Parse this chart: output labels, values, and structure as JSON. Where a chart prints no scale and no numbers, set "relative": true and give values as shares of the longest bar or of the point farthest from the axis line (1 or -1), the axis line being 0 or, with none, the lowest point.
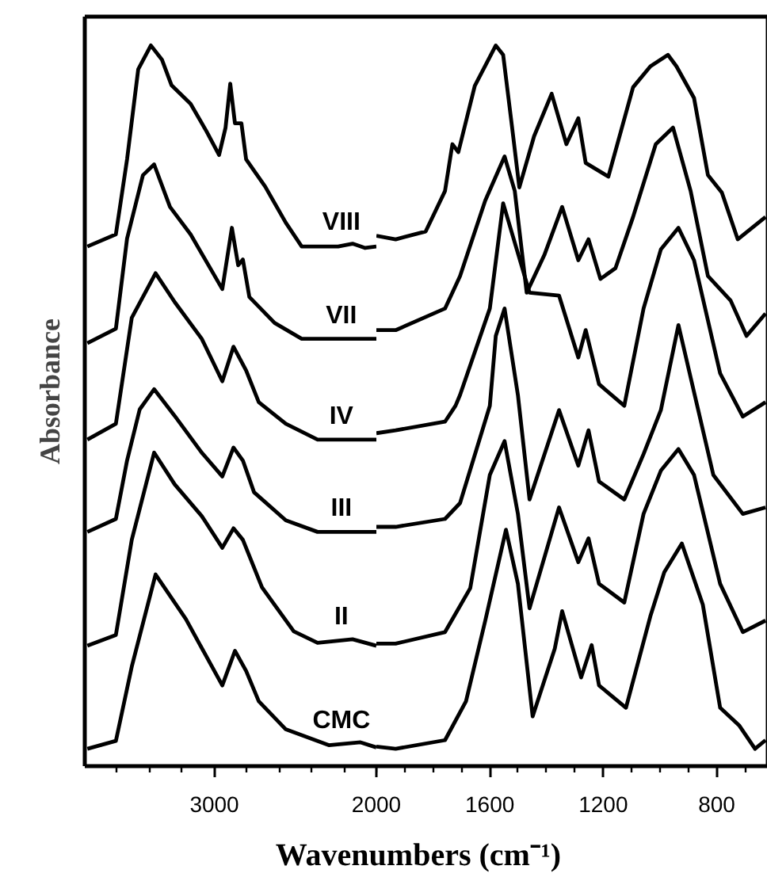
{
  "chart_data": [
    {
      "type": "line",
      "relative": true,
      "ylabel": "Absorbance",
      "xlim": [
        3800,
        2000
      ],
      "xticks": [
        {
          "value": 3600,
          "label": null
        },
        {
          "value": 3400,
          "label": null
        },
        {
          "value": 3200,
          "label": null
        },
        3000,
        {
          "value": 2800,
          "label": null
        },
        {
          "value": 2600,
          "label": null
        },
        {
          "value": 2400,
          "label": null
        },
        {
          "value": 2200,
          "label": null
        },
        2000
      ],
      "series": [
        {
          "name": "VIII",
          "color": "#000000",
          "x": [
            3784,
            3608,
            3539,
            3470,
            3392,
            3323,
            3265,
            3147,
            3049,
            2971,
            2931,
            2902,
            2873,
            2833,
            2804,
            2686,
            2559,
            2461,
            2236,
            2147,
            2069,
            2000
          ],
          "values": [
            0.721,
            0.738,
            0.842,
            0.967,
            1.0,
            0.98,
            0.945,
            0.919,
            0.881,
            0.848,
            0.886,
            0.947,
            0.892,
            0.892,
            0.842,
            0.804,
            0.754,
            0.721,
            0.721,
            0.725,
            0.719,
            0.721
          ]
        },
        {
          "name": "VII",
          "color": "#000000",
          "x": [
            3784,
            3608,
            3539,
            3441,
            3372,
            3274,
            3147,
            2951,
            2892,
            2853,
            2824,
            2784,
            2628,
            2461,
            2098,
            2000
          ],
          "values": [
            0.587,
            0.607,
            0.732,
            0.82,
            0.835,
            0.776,
            0.738,
            0.662,
            0.747,
            0.695,
            0.703,
            0.651,
            0.615,
            0.593,
            0.593,
            0.593
          ]
        },
        {
          "name": "IV",
          "color": "#000000",
          "x": [
            3784,
            3608,
            3510,
            3363,
            3245,
            3078,
            2951,
            2882,
            2804,
            2726,
            2559,
            2363,
            2000
          ],
          "values": [
            0.453,
            0.475,
            0.622,
            0.684,
            0.644,
            0.593,
            0.534,
            0.582,
            0.549,
            0.505,
            0.475,
            0.453,
            0.453
          ]
        },
        {
          "name": "III",
          "color": "#000000",
          "x": [
            3784,
            3608,
            3539,
            3461,
            3372,
            3245,
            3078,
            2951,
            2882,
            2824,
            2755,
            2559,
            2363,
            2000
          ],
          "values": [
            0.325,
            0.343,
            0.424,
            0.495,
            0.523,
            0.486,
            0.435,
            0.402,
            0.442,
            0.424,
            0.38,
            0.341,
            0.325,
            0.325
          ]
        },
        {
          "name": "II",
          "color": "#000000",
          "x": [
            3784,
            3608,
            3510,
            3372,
            3245,
            3078,
            2951,
            2882,
            2824,
            2706,
            2510,
            2363,
            2147,
            2000
          ],
          "values": [
            0.167,
            0.182,
            0.314,
            0.435,
            0.391,
            0.347,
            0.303,
            0.33,
            0.314,
            0.248,
            0.187,
            0.171,
            0.176,
            0.167
          ]
        },
        {
          "name": "CMC",
          "color": "#000000",
          "x": [
            3784,
            3608,
            3510,
            3363,
            3176,
            2951,
            2873,
            2804,
            2726,
            2559,
            2294,
            2098,
            2000
          ],
          "values": [
            0.024,
            0.035,
            0.138,
            0.266,
            0.204,
            0.112,
            0.16,
            0.132,
            0.09,
            0.051,
            0.029,
            0.033,
            0.026
          ]
        }
      ]
    },
    {
      "type": "line",
      "relative": true,
      "xlabel": "Wavenumbers (cm⁻¹)",
      "xlim": [
        2000,
        620
      ],
      "xticks": [
        {
          "value": 2000,
          "label": null
        },
        {
          "value": 1900,
          "label": null
        },
        {
          "value": 1800,
          "label": null
        },
        {
          "value": 1700,
          "label": null
        },
        1600,
        {
          "value": 1500,
          "label": null
        },
        {
          "value": 1400,
          "label": null
        },
        {
          "value": 1300,
          "label": null
        },
        1200,
        {
          "value": 1100,
          "label": null
        },
        {
          "value": 1000,
          "label": null
        },
        {
          "value": 900,
          "label": null
        },
        800,
        {
          "value": 700,
          "label": null
        }
      ],
      "series": [
        {
          "color": "#000000",
          "x": [
            2000,
            1932,
            1826,
            1758,
            1732,
            1711,
            1653,
            1579,
            1553,
            1522,
            1496,
            1444,
            1382,
            1330,
            1288,
            1262,
            1182,
            1095,
            1034,
            972,
            942,
            880,
            831,
            782,
            726,
            628
          ],
          "values": [
            0.736,
            0.731,
            0.742,
            0.798,
            0.863,
            0.852,
            0.944,
            1.0,
            0.987,
            0.888,
            0.803,
            0.874,
            0.933,
            0.863,
            0.899,
            0.837,
            0.818,
            0.942,
            0.971,
            0.987,
            0.971,
            0.927,
            0.82,
            0.796,
            0.731,
            0.762
          ]
        },
        {
          "color": "#000000",
          "x": [
            2000,
            1932,
            1758,
            1705,
            1616,
            1548,
            1512,
            1470,
            1408,
            1345,
            1288,
            1252,
            1210,
            1157,
            1095,
            1015,
            954,
            892,
            831,
            751,
            695,
            628
          ],
          "values": [
            0.605,
            0.605,
            0.635,
            0.68,
            0.785,
            0.846,
            0.798,
            0.657,
            0.709,
            0.776,
            0.702,
            0.731,
            0.676,
            0.691,
            0.762,
            0.863,
            0.886,
            0.798,
            0.68,
            0.646,
            0.597,
            0.628
          ]
        },
        {
          "color": "#000000",
          "x": [
            2000,
            1932,
            1758,
            1721,
            1705,
            1600,
            1553,
            1460,
            1356,
            1288,
            1262,
            1215,
            1126,
            1058,
            997,
            935,
            880,
            788,
            708,
            628
          ],
          "values": [
            0.462,
            0.466,
            0.478,
            0.5,
            0.515,
            0.635,
            0.781,
            0.657,
            0.653,
            0.567,
            0.605,
            0.53,
            0.5,
            0.635,
            0.717,
            0.747,
            0.702,
            0.545,
            0.485,
            0.505
          ]
        },
        {
          "color": "#000000",
          "x": [
            2000,
            1932,
            1758,
            1705,
            1600,
            1579,
            1548,
            1501,
            1460,
            1356,
            1288,
            1252,
            1215,
            1126,
            1058,
            997,
            935,
            812,
            708,
            628
          ],
          "values": [
            0.332,
            0.332,
            0.343,
            0.365,
            0.5,
            0.597,
            0.635,
            0.515,
            0.37,
            0.494,
            0.417,
            0.466,
            0.395,
            0.37,
            0.433,
            0.494,
            0.612,
            0.404,
            0.35,
            0.359
          ]
        },
        {
          "color": "#000000",
          "x": [
            2000,
            1932,
            1758,
            1669,
            1600,
            1548,
            1501,
            1460,
            1356,
            1288,
            1252,
            1215,
            1126,
            1058,
            997,
            935,
            880,
            788,
            708,
            628
          ],
          "values": [
            0.17,
            0.17,
            0.186,
            0.247,
            0.404,
            0.451,
            0.35,
            0.219,
            0.359,
            0.283,
            0.316,
            0.253,
            0.227,
            0.35,
            0.41,
            0.44,
            0.404,
            0.253,
            0.186,
            0.202
          ]
        },
        {
          "color": "#000000",
          "x": [
            2000,
            1932,
            1758,
            1684,
            1616,
            1543,
            1501,
            1449,
            1371,
            1345,
            1278,
            1241,
            1215,
            1120,
            1034,
            985,
            923,
            849,
            788,
            720,
            665,
            628
          ],
          "values": [
            0.027,
            0.024,
            0.036,
            0.09,
            0.202,
            0.328,
            0.253,
            0.069,
            0.163,
            0.215,
            0.123,
            0.168,
            0.112,
            0.081,
            0.208,
            0.269,
            0.309,
            0.224,
            0.081,
            0.056,
            0.024,
            0.036
          ]
        }
      ]
    }
  ]
}
